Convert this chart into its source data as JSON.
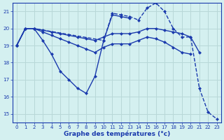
{
  "title": "Graphe des températures (°c)",
  "bg_color": "#d4f0f0",
  "grid_color": "#b8d8d8",
  "line_color": "#1a3aad",
  "xlim": [
    -0.5,
    23.5
  ],
  "ylim": [
    14.5,
    21.5
  ],
  "yticks": [
    15,
    16,
    17,
    18,
    19,
    20,
    21
  ],
  "xticks": [
    0,
    1,
    2,
    3,
    4,
    5,
    6,
    7,
    8,
    9,
    10,
    11,
    12,
    13,
    14,
    15,
    16,
    17,
    18,
    19,
    20,
    21,
    22,
    23
  ],
  "series": [
    {
      "x": [
        0,
        1,
        2,
        3,
        4,
        5,
        6,
        7,
        8,
        9,
        10,
        11,
        12,
        13
      ],
      "y": [
        19.0,
        20.0,
        20.0,
        19.3,
        18.5,
        17.5,
        17.0,
        16.5,
        16.2,
        17.2,
        19.3,
        20.8,
        20.7,
        20.6
      ],
      "style": "-",
      "marker": "D",
      "markersize": 2.5,
      "lw": 1.0
    },
    {
      "x": [
        0,
        1,
        2,
        10,
        11,
        12,
        13,
        14,
        15,
        16,
        17,
        18,
        19,
        20,
        21,
        22,
        23
      ],
      "y": [
        19.0,
        20.0,
        20.0,
        19.3,
        20.9,
        20.8,
        20.7,
        20.5,
        21.2,
        21.5,
        21.0,
        20.0,
        19.5,
        19.5,
        16.5,
        15.1,
        14.7
      ],
      "style": "--",
      "marker": "D",
      "markersize": 2.5,
      "lw": 1.0
    },
    {
      "x": [
        0,
        1,
        2,
        3,
        4,
        5,
        6,
        7,
        8,
        9,
        10,
        11,
        12,
        13,
        14,
        15,
        16,
        17,
        18,
        19,
        20,
        21
      ],
      "y": [
        19.0,
        20.0,
        20.0,
        19.9,
        19.8,
        19.7,
        19.6,
        19.5,
        19.4,
        19.3,
        19.5,
        19.7,
        19.7,
        19.7,
        19.8,
        20.0,
        20.0,
        19.9,
        19.8,
        19.7,
        19.5,
        18.6
      ],
      "style": "-",
      "marker": "D",
      "markersize": 2.5,
      "lw": 1.0
    },
    {
      "x": [
        0,
        1,
        2,
        3,
        4,
        5,
        6,
        7,
        8,
        9,
        10,
        11,
        12,
        13,
        14,
        15,
        16,
        17,
        18,
        19,
        20
      ],
      "y": [
        19.0,
        20.0,
        20.0,
        19.8,
        19.6,
        19.4,
        19.2,
        19.0,
        18.8,
        18.6,
        18.9,
        19.1,
        19.1,
        19.1,
        19.3,
        19.5,
        19.4,
        19.2,
        18.9,
        18.6,
        18.5
      ],
      "style": "-",
      "marker": "D",
      "markersize": 2.5,
      "lw": 1.0
    }
  ]
}
